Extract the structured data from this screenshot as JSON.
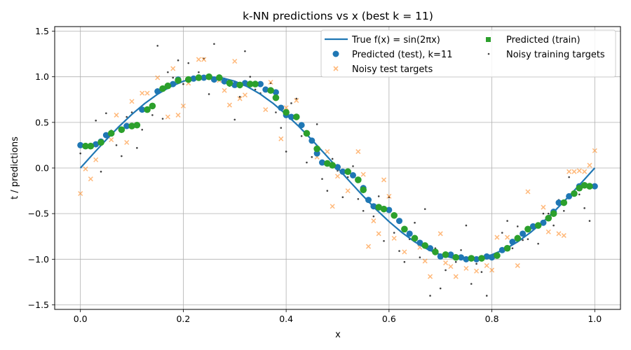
{
  "chart_data": {
    "type": "scatter",
    "title": "k-NN predictions vs x (best k = 11)",
    "xlabel": "x",
    "ylabel": "t / predictions",
    "xlim": [
      -0.05,
      1.05
    ],
    "ylim": [
      -1.55,
      1.55
    ],
    "xticks": [
      0.0,
      0.2,
      0.4,
      0.6,
      0.8,
      1.0
    ],
    "xtick_labels": [
      "0.0",
      "0.2",
      "0.4",
      "0.6",
      "0.8",
      "1.0"
    ],
    "yticks": [
      -1.5,
      -1.0,
      -0.5,
      0.0,
      0.5,
      1.0,
      1.5
    ],
    "ytick_labels": [
      "−1.5",
      "−1.0",
      "−0.5",
      "0.0",
      "0.5",
      "1.0",
      "1.5"
    ],
    "grid": true,
    "legend": {
      "placement": "top-right",
      "columns": 2,
      "entries": [
        "True f(x) = sin(2πx)",
        "Predicted (test), k=11",
        "Noisy test targets",
        "Predicted (train)",
        "Noisy training targets"
      ]
    },
    "colors": {
      "true_line": "#1f77b4",
      "pred_test": "#1f77b4",
      "noisy_test": "#ff7f0e",
      "pred_train": "#2ca02c",
      "noisy_train": "#000000",
      "grid": "#b0b0b0"
    },
    "series": [
      {
        "name": "True f(x) = sin(2πx)",
        "kind": "line",
        "x": [
          0.0,
          0.025,
          0.05,
          0.075,
          0.1,
          0.125,
          0.15,
          0.175,
          0.2,
          0.225,
          0.25,
          0.275,
          0.3,
          0.325,
          0.35,
          0.375,
          0.4,
          0.425,
          0.45,
          0.475,
          0.5,
          0.525,
          0.55,
          0.575,
          0.6,
          0.625,
          0.65,
          0.675,
          0.7,
          0.725,
          0.75,
          0.775,
          0.8,
          0.825,
          0.85,
          0.875,
          0.9,
          0.925,
          0.95,
          0.975,
          1.0
        ],
        "y": [
          0.0,
          0.156,
          0.309,
          0.454,
          0.588,
          0.707,
          0.809,
          0.891,
          0.951,
          0.988,
          1.0,
          0.988,
          0.951,
          0.891,
          0.809,
          0.707,
          0.588,
          0.454,
          0.309,
          0.156,
          0.0,
          -0.156,
          -0.309,
          -0.454,
          -0.588,
          -0.707,
          -0.809,
          -0.891,
          -0.951,
          -0.988,
          -1.0,
          -0.988,
          -0.951,
          -0.891,
          -0.809,
          -0.707,
          -0.588,
          -0.454,
          -0.309,
          -0.156,
          0.0
        ]
      },
      {
        "name": "Predicted (test), k=11",
        "kind": "circle",
        "x": [
          0.0,
          0.03,
          0.04,
          0.05,
          0.06,
          0.09,
          0.12,
          0.15,
          0.18,
          0.19,
          0.21,
          0.22,
          0.24,
          0.26,
          0.28,
          0.3,
          0.32,
          0.35,
          0.36,
          0.38,
          0.39,
          0.4,
          0.41,
          0.43,
          0.45,
          0.46,
          0.47,
          0.5,
          0.51,
          0.53,
          0.55,
          0.56,
          0.57,
          0.6,
          0.62,
          0.64,
          0.66,
          0.68,
          0.7,
          0.72,
          0.74,
          0.75,
          0.77,
          0.79,
          0.8,
          0.82,
          0.84,
          0.86,
          0.88,
          0.9,
          0.92,
          0.93,
          0.95,
          0.97,
          0.99,
          1.0
        ],
        "y": [
          0.25,
          0.26,
          0.29,
          0.36,
          0.38,
          0.46,
          0.64,
          0.84,
          0.92,
          0.97,
          0.97,
          0.98,
          0.99,
          0.97,
          0.95,
          0.91,
          0.93,
          0.92,
          0.86,
          0.83,
          0.66,
          0.58,
          0.56,
          0.47,
          0.3,
          0.16,
          0.06,
          0.01,
          -0.04,
          -0.08,
          -0.22,
          -0.35,
          -0.42,
          -0.46,
          -0.58,
          -0.72,
          -0.82,
          -0.88,
          -0.97,
          -0.95,
          -0.98,
          -1.0,
          -1.0,
          -0.97,
          -0.98,
          -0.9,
          -0.81,
          -0.72,
          -0.64,
          -0.6,
          -0.48,
          -0.38,
          -0.31,
          -0.2,
          -0.2,
          -0.2
        ]
      },
      {
        "name": "Noisy test targets",
        "kind": "x",
        "x": [
          0.0,
          0.01,
          0.02,
          0.03,
          0.06,
          0.07,
          0.09,
          0.1,
          0.12,
          0.13,
          0.15,
          0.17,
          0.18,
          0.19,
          0.2,
          0.21,
          0.23,
          0.24,
          0.27,
          0.28,
          0.29,
          0.3,
          0.31,
          0.32,
          0.34,
          0.36,
          0.37,
          0.39,
          0.4,
          0.41,
          0.42,
          0.46,
          0.48,
          0.49,
          0.5,
          0.52,
          0.54,
          0.55,
          0.56,
          0.57,
          0.58,
          0.59,
          0.6,
          0.61,
          0.63,
          0.64,
          0.66,
          0.67,
          0.68,
          0.7,
          0.71,
          0.72,
          0.73,
          0.75,
          0.77,
          0.79,
          0.8,
          0.81,
          0.83,
          0.85,
          0.87,
          0.9,
          0.91,
          0.93,
          0.94,
          0.95,
          0.96,
          0.97,
          0.98,
          0.99,
          1.0
        ],
        "y": [
          -0.28,
          -0.01,
          -0.12,
          0.09,
          0.31,
          0.58,
          0.28,
          0.73,
          0.82,
          0.82,
          0.99,
          0.56,
          1.09,
          0.58,
          0.68,
          0.93,
          1.19,
          1.19,
          0.96,
          0.85,
          0.69,
          1.17,
          0.76,
          0.8,
          0.92,
          0.64,
          0.94,
          0.32,
          0.66,
          0.56,
          0.74,
          0.12,
          0.18,
          -0.42,
          -0.09,
          -0.25,
          0.18,
          -0.07,
          -0.86,
          -0.58,
          -0.72,
          -0.13,
          -0.31,
          -0.77,
          -0.92,
          -0.72,
          -0.87,
          -1.02,
          -1.19,
          -0.72,
          -1.04,
          -1.08,
          -1.19,
          -1.1,
          -1.13,
          -1.07,
          -1.12,
          -0.76,
          -0.76,
          -1.07,
          -0.26,
          -0.43,
          -0.7,
          -0.72,
          -0.74,
          -0.04,
          -0.04,
          -0.03,
          -0.04,
          0.03,
          0.19
        ]
      },
      {
        "name": "Predicted (train)",
        "kind": "square",
        "x": [
          0.01,
          0.02,
          0.04,
          0.06,
          0.08,
          0.1,
          0.11,
          0.13,
          0.14,
          0.16,
          0.17,
          0.19,
          0.21,
          0.23,
          0.25,
          0.27,
          0.29,
          0.31,
          0.33,
          0.34,
          0.37,
          0.38,
          0.4,
          0.42,
          0.44,
          0.46,
          0.48,
          0.49,
          0.52,
          0.54,
          0.55,
          0.58,
          0.59,
          0.61,
          0.63,
          0.65,
          0.67,
          0.69,
          0.71,
          0.73,
          0.76,
          0.78,
          0.81,
          0.83,
          0.85,
          0.87,
          0.89,
          0.91,
          0.92,
          0.94,
          0.96,
          0.97,
          0.98,
          0.99
        ],
        "y": [
          0.24,
          0.24,
          0.28,
          0.38,
          0.42,
          0.46,
          0.47,
          0.64,
          0.68,
          0.87,
          0.9,
          0.96,
          0.97,
          0.99,
          1.0,
          0.99,
          0.93,
          0.91,
          0.92,
          0.92,
          0.85,
          0.77,
          0.61,
          0.56,
          0.38,
          0.21,
          0.05,
          0.03,
          -0.04,
          -0.13,
          -0.24,
          -0.43,
          -0.45,
          -0.52,
          -0.67,
          -0.77,
          -0.85,
          -0.92,
          -0.95,
          -0.98,
          -0.99,
          -0.99,
          -0.96,
          -0.88,
          -0.77,
          -0.67,
          -0.63,
          -0.55,
          -0.5,
          -0.38,
          -0.28,
          -0.22,
          -0.19,
          -0.2
        ]
      },
      {
        "name": "Noisy training targets",
        "kind": "dot",
        "x": [
          0.0,
          0.01,
          0.02,
          0.03,
          0.04,
          0.05,
          0.06,
          0.07,
          0.08,
          0.09,
          0.1,
          0.11,
          0.12,
          0.13,
          0.14,
          0.15,
          0.16,
          0.17,
          0.18,
          0.19,
          0.2,
          0.21,
          0.22,
          0.23,
          0.24,
          0.25,
          0.26,
          0.27,
          0.28,
          0.29,
          0.3,
          0.31,
          0.32,
          0.33,
          0.34,
          0.35,
          0.36,
          0.37,
          0.38,
          0.39,
          0.4,
          0.41,
          0.42,
          0.43,
          0.44,
          0.45,
          0.46,
          0.47,
          0.48,
          0.49,
          0.5,
          0.51,
          0.52,
          0.53,
          0.54,
          0.55,
          0.56,
          0.57,
          0.58,
          0.59,
          0.6,
          0.61,
          0.62,
          0.63,
          0.64,
          0.65,
          0.66,
          0.67,
          0.68,
          0.69,
          0.7,
          0.71,
          0.72,
          0.73,
          0.74,
          0.75,
          0.76,
          0.77,
          0.78,
          0.79,
          0.8,
          0.81,
          0.82,
          0.83,
          0.84,
          0.85,
          0.86,
          0.87,
          0.88,
          0.89,
          0.9,
          0.91,
          0.92,
          0.93,
          0.94,
          0.95,
          0.96,
          0.97,
          0.98,
          0.99
        ],
        "y": [
          0.16,
          0.24,
          0.24,
          0.52,
          -0.04,
          0.6,
          0.41,
          0.25,
          0.13,
          0.56,
          0.61,
          0.22,
          0.42,
          0.65,
          0.58,
          1.34,
          0.54,
          1.05,
          0.99,
          1.18,
          0.92,
          1.15,
          0.97,
          1.05,
          1.2,
          0.81,
          1.36,
          1.0,
          0.98,
          0.9,
          0.53,
          0.78,
          1.28,
          1.0,
          0.86,
          0.82,
          0.88,
          0.93,
          0.61,
          0.44,
          0.18,
          0.71,
          0.76,
          0.35,
          0.06,
          0.12,
          0.48,
          -0.12,
          -0.25,
          0.1,
          -0.03,
          -0.32,
          -0.1,
          0.02,
          -0.34,
          -0.47,
          -0.37,
          -0.53,
          -0.31,
          -0.8,
          -0.32,
          -0.71,
          -0.91,
          -1.03,
          -0.78,
          -0.6,
          -0.98,
          -0.45,
          -1.4,
          -0.88,
          -1.32,
          -1.12,
          -0.96,
          -1.03,
          -0.9,
          -0.63,
          -1.27,
          -1.05,
          -1.14,
          -1.4,
          -0.99,
          -0.96,
          -0.71,
          -0.58,
          -0.88,
          -0.64,
          -0.79,
          -0.78,
          -0.63,
          -0.83,
          -0.5,
          -0.5,
          -0.63,
          -0.35,
          -0.47,
          -0.1,
          -0.27,
          -0.29,
          -0.44,
          -0.58
        ]
      }
    ]
  }
}
